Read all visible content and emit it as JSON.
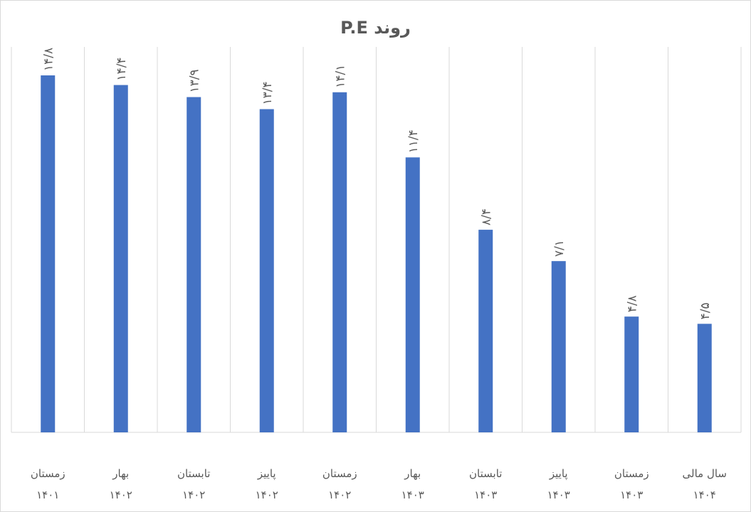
{
  "chart_data": {
    "type": "bar",
    "title": "روند  P.E",
    "xlabel": "",
    "ylabel": "",
    "ylim": [
      0,
      14.8
    ],
    "grid": "vertical",
    "legend": "none",
    "bar_color": "#4472c4",
    "categories": [
      {
        "line1": "زمستان",
        "line2": "۱۴۰۱"
      },
      {
        "line1": "بهار",
        "line2": "۱۴۰۲"
      },
      {
        "line1": "تابستان",
        "line2": "۱۴۰۲"
      },
      {
        "line1": "پاییز",
        "line2": "۱۴۰۲"
      },
      {
        "line1": "زمستان",
        "line2": "۱۴۰۲"
      },
      {
        "line1": "بهار",
        "line2": "۱۴۰۳"
      },
      {
        "line1": "تابستان",
        "line2": "۱۴۰۳"
      },
      {
        "line1": "پاییز",
        "line2": "۱۴۰۳"
      },
      {
        "line1": "زمستان",
        "line2": "۱۴۰۳"
      },
      {
        "line1": "سال  مالی",
        "line2": "۱۴۰۴"
      }
    ],
    "values": [
      14.8,
      14.4,
      13.9,
      13.4,
      14.1,
      11.4,
      8.4,
      7.1,
      4.8,
      4.5
    ],
    "data_labels": [
      "۱۴/۸",
      "۱۴/۴",
      "۱۳/۹",
      "۱۳/۴",
      "۱۴/۱",
      "۱۱/۴",
      "۸/۴",
      "۷/۱",
      "۴/۸",
      "۴/۵"
    ]
  }
}
